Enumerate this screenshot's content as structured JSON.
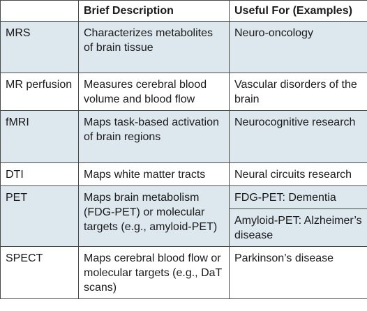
{
  "table": {
    "headers": [
      "",
      "Brief Description",
      "Useful For (Examples)"
    ],
    "rows": [
      {
        "technique": "MRS",
        "description": "Characterizes metabolites of brain tissue",
        "useful_for": [
          "Neuro-oncology"
        ]
      },
      {
        "technique": "MR perfusion",
        "description": "Measures cerebral blood volume and blood flow",
        "useful_for": [
          "Vascular disorders of the brain"
        ]
      },
      {
        "technique": "fMRI",
        "description": "Maps task-based activation of brain regions",
        "useful_for": [
          "Neurocognitive research"
        ]
      },
      {
        "technique": "DTI",
        "description": "Maps white matter tracts",
        "useful_for": [
          "Neural circuits research"
        ]
      },
      {
        "technique": "PET",
        "description": "Maps brain metabolism (FDG-PET) or molecular targets (e.g., amyloid-PET)",
        "useful_for": [
          "FDG-PET: Dementia",
          "Amyloid-PET: Alzheimer’s disease"
        ]
      },
      {
        "technique": "SPECT",
        "description": "Maps cerebral blood flow or molecular targets (e.g., DaT scans)",
        "useful_for": [
          "Parkinson’s disease"
        ]
      }
    ]
  },
  "colors": {
    "row_shade": "#dde7ee",
    "row_plain": "#ffffff",
    "border": "#4a4a4a"
  }
}
